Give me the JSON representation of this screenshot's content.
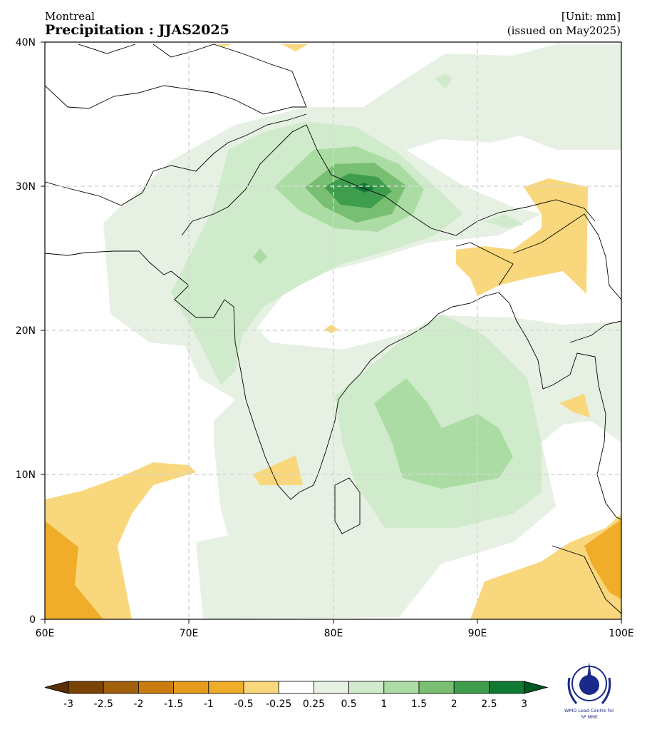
{
  "header": {
    "location": "Montreal",
    "title": "Precipitation : JJAS2025",
    "unit": "[Unit: mm]",
    "issued": "(issued on May2025)"
  },
  "map": {
    "lon_range": [
      60,
      100
    ],
    "lat_range": [
      0,
      40
    ],
    "x_ticks": [
      "60E",
      "70E",
      "80E",
      "90E",
      "100E"
    ],
    "y_ticks": [
      "0",
      "10N",
      "20N",
      "30N",
      "40N"
    ],
    "gridlines": true
  },
  "colorbar": {
    "labels": [
      "-3",
      "-2.5",
      "-2",
      "-1.5",
      "-1",
      "-0.5",
      "-0.25",
      "0.25",
      "0.5",
      "1",
      "1.5",
      "2",
      "2.5",
      "3"
    ],
    "colors": [
      "#7a4306",
      "#a0600b",
      "#c97d11",
      "#e59b1c",
      "#f0ad2a",
      "#f9d77c",
      "#ffffff",
      "#e7f1e3",
      "#d0ebcc",
      "#abdca4",
      "#78bf72",
      "#3f9e4d",
      "#0e7a33"
    ],
    "under_color": "#5c3003",
    "over_color": "#005a24"
  },
  "logo": {
    "line1": "WMO Lead Centre for",
    "line2": "SP MME"
  }
}
